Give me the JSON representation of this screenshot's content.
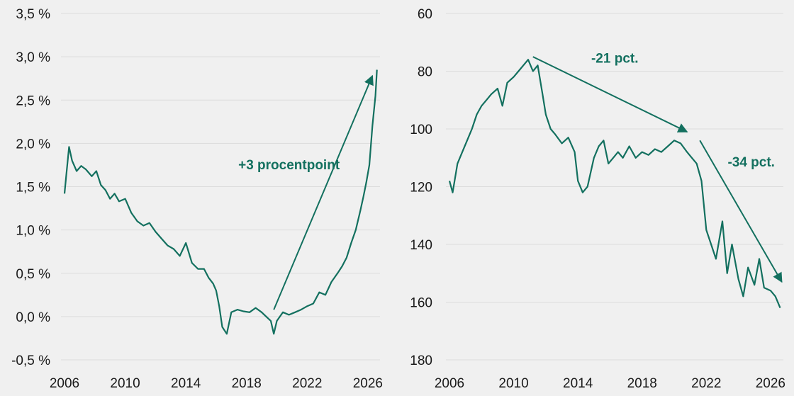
{
  "colors": {
    "line": "#13705f",
    "background": "#f0f0f0",
    "grid": "#dcdcdc",
    "text": "#1a1a1a"
  },
  "chart_data": [
    {
      "type": "line",
      "title": "",
      "xlabel": "",
      "ylabel": "",
      "xlim": [
        2006,
        2026.8
      ],
      "ylim": [
        -0.5,
        3.5
      ],
      "x_ticks": [
        2006,
        2010,
        2014,
        2018,
        2022,
        2026
      ],
      "x_tick_labels": [
        "2006",
        "2010",
        "2014",
        "2018",
        "2022",
        "2026"
      ],
      "y_ticks": [
        -0.5,
        0.0,
        0.5,
        1.0,
        1.5,
        2.0,
        2.5,
        3.0,
        3.5
      ],
      "y_tick_labels": [
        "-0,5 %",
        "0,0 %",
        "0,5 %",
        "1,0 %",
        "1,5 %",
        "2,0 %",
        "2,5 %",
        "3,0 %",
        "3,5 %"
      ],
      "y_inverted": false,
      "grid": true,
      "series": [
        {
          "color": "#13705f",
          "x": [
            2006.0,
            2006.1,
            2006.3,
            2006.5,
            2006.8,
            2007.1,
            2007.4,
            2007.8,
            2008.1,
            2008.4,
            2008.7,
            2009.0,
            2009.3,
            2009.6,
            2010.0,
            2010.4,
            2010.8,
            2011.2,
            2011.6,
            2012.0,
            2012.4,
            2012.8,
            2013.2,
            2013.6,
            2014.0,
            2014.4,
            2014.8,
            2015.2,
            2015.5,
            2015.8,
            2016.0,
            2016.2,
            2016.4,
            2016.7,
            2017.0,
            2017.4,
            2017.8,
            2018.2,
            2018.6,
            2019.0,
            2019.3,
            2019.6,
            2019.8,
            2020.0,
            2020.4,
            2020.8,
            2021.2,
            2021.6,
            2022.0,
            2022.4,
            2022.8,
            2023.2,
            2023.6,
            2024.0,
            2024.3,
            2024.6,
            2024.9,
            2025.2,
            2025.5,
            2025.7,
            2025.9,
            2026.1,
            2026.3,
            2026.5,
            2026.6
          ],
          "y": [
            1.42,
            1.6,
            1.96,
            1.8,
            1.68,
            1.74,
            1.7,
            1.62,
            1.68,
            1.52,
            1.46,
            1.36,
            1.42,
            1.33,
            1.36,
            1.2,
            1.1,
            1.05,
            1.08,
            0.98,
            0.9,
            0.82,
            0.78,
            0.7,
            0.85,
            0.62,
            0.55,
            0.55,
            0.45,
            0.38,
            0.3,
            0.12,
            -0.12,
            -0.2,
            0.05,
            0.08,
            0.06,
            0.05,
            0.1,
            0.05,
            0.0,
            -0.05,
            -0.2,
            -0.05,
            0.05,
            0.02,
            0.05,
            0.08,
            0.12,
            0.15,
            0.28,
            0.25,
            0.4,
            0.5,
            0.58,
            0.68,
            0.85,
            1.0,
            1.22,
            1.38,
            1.55,
            1.75,
            2.2,
            2.55,
            2.85
          ]
        }
      ],
      "annotations": [
        {
          "text": "+3 procentpoint",
          "x": 2020.8,
          "y": 1.7
        }
      ],
      "arrows": [
        {
          "from": [
            2019.8,
            0.08
          ],
          "to": [
            2026.3,
            2.78
          ]
        }
      ]
    },
    {
      "type": "line",
      "title": "",
      "xlabel": "",
      "ylabel": "",
      "xlim": [
        2006,
        2026.8
      ],
      "ylim": [
        60,
        180
      ],
      "x_ticks": [
        2006,
        2010,
        2014,
        2018,
        2022,
        2026
      ],
      "x_tick_labels": [
        "2006",
        "2010",
        "2014",
        "2018",
        "2022",
        "2026"
      ],
      "y_ticks": [
        60,
        80,
        100,
        120,
        140,
        160,
        180
      ],
      "y_tick_labels": [
        "60",
        "80",
        "100",
        "120",
        "140",
        "160",
        "180"
      ],
      "y_inverted": true,
      "grid": true,
      "series": [
        {
          "color": "#13705f",
          "x": [
            2006.0,
            2006.2,
            2006.5,
            2006.8,
            2007.1,
            2007.4,
            2007.7,
            2008.0,
            2008.3,
            2008.6,
            2009.0,
            2009.3,
            2009.6,
            2010.0,
            2010.3,
            2010.6,
            2010.9,
            2011.2,
            2011.5,
            2011.8,
            2012.0,
            2012.3,
            2012.6,
            2013.0,
            2013.4,
            2013.8,
            2014.0,
            2014.3,
            2014.6,
            2015.0,
            2015.3,
            2015.6,
            2015.9,
            2016.2,
            2016.5,
            2016.8,
            2017.2,
            2017.6,
            2018.0,
            2018.4,
            2018.8,
            2019.2,
            2019.6,
            2020.0,
            2020.4,
            2020.8,
            2021.1,
            2021.4,
            2021.7,
            2022.0,
            2022.3,
            2022.6,
            2023.0,
            2023.3,
            2023.6,
            2024.0,
            2024.3,
            2024.6,
            2025.0,
            2025.3,
            2025.6,
            2026.0,
            2026.3,
            2026.6
          ],
          "y": [
            118,
            122,
            112,
            108,
            104,
            100,
            95,
            92,
            90,
            88,
            86,
            92,
            84,
            82,
            80,
            78,
            76,
            80,
            78,
            88,
            95,
            100,
            102,
            105,
            103,
            108,
            118,
            122,
            120,
            110,
            106,
            104,
            112,
            110,
            108,
            110,
            106,
            110,
            108,
            109,
            107,
            108,
            106,
            104,
            105,
            108,
            110,
            112,
            118,
            135,
            140,
            145,
            132,
            150,
            140,
            152,
            158,
            148,
            154,
            145,
            155,
            156,
            158,
            162
          ]
        }
      ],
      "annotations": [
        {
          "text": "-21 pct.",
          "x": 2016.3,
          "y": 77
        },
        {
          "text": "-34 pct.",
          "x": 2024.8,
          "y": 113
        }
      ],
      "arrows": [
        {
          "from": [
            2011.2,
            75
          ],
          "to": [
            2020.8,
            101
          ]
        },
        {
          "from": [
            2021.6,
            104
          ],
          "to": [
            2026.7,
            153
          ]
        }
      ]
    }
  ]
}
